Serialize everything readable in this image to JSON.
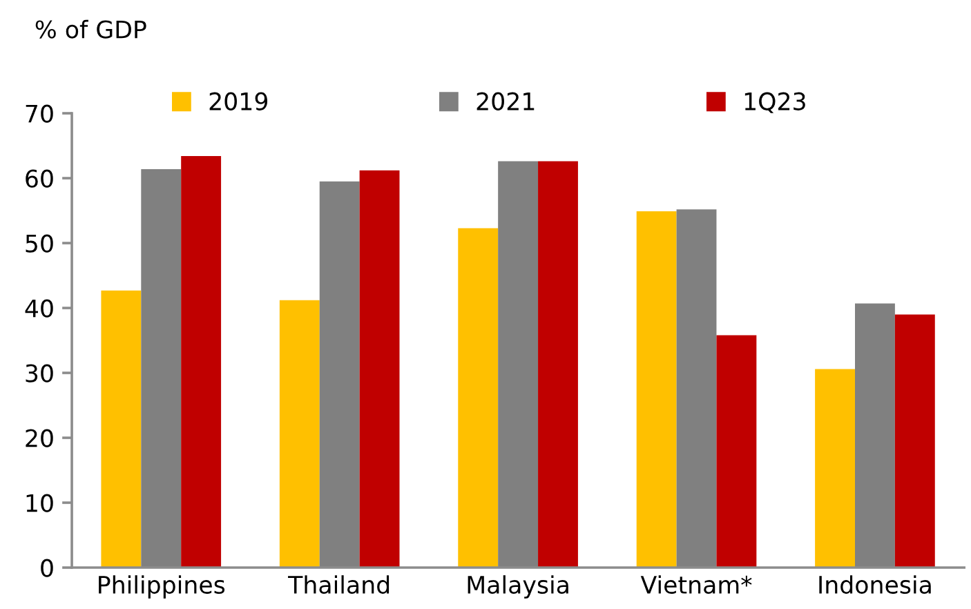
{
  "chart_data": {
    "type": "bar",
    "ylabel": "% of GDP",
    "categories": [
      "Philippines",
      "Thailand",
      "Malaysia",
      "Vietnam*",
      "Indonesia"
    ],
    "series": [
      {
        "name": "2019",
        "color": "#ffc000",
        "values": [
          42.7,
          41.2,
          52.3,
          54.9,
          30.6
        ]
      },
      {
        "name": "2021",
        "color": "#808080",
        "values": [
          61.4,
          59.5,
          62.6,
          55.2,
          40.7
        ]
      },
      {
        "name": "1Q23",
        "color": "#c00000",
        "values": [
          63.4,
          61.2,
          62.6,
          35.8,
          39.0
        ]
      }
    ],
    "ylim": [
      0,
      70
    ],
    "yticks": [
      0,
      10,
      20,
      30,
      40,
      50,
      60,
      70
    ],
    "grid": false,
    "legend": "top"
  }
}
